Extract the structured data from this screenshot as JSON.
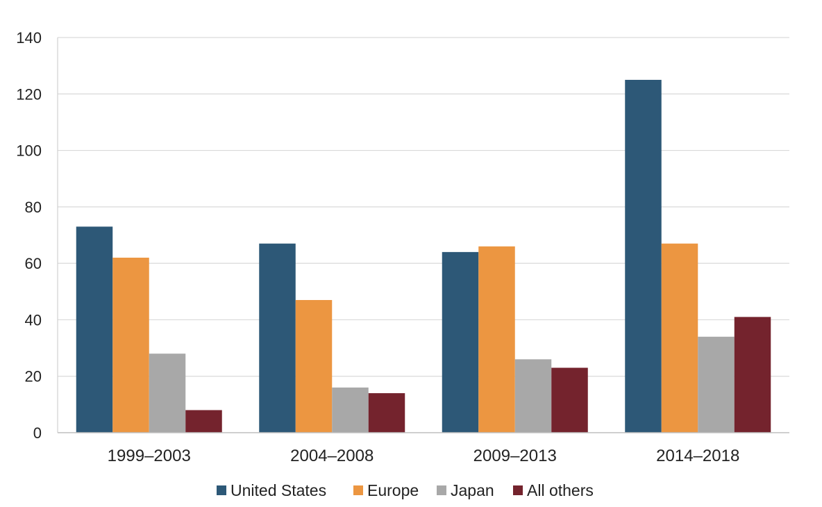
{
  "chart_data": {
    "type": "bar",
    "title": "",
    "xlabel": "",
    "ylabel": "",
    "categories": [
      "1999–2003",
      "2004–2008",
      "2009–2013",
      "2014–2018"
    ],
    "series": [
      {
        "name": "United States",
        "color": "#2d5877",
        "values": [
          73,
          67,
          64,
          125
        ]
      },
      {
        "name": "Europe",
        "color": "#ec9641",
        "values": [
          62,
          47,
          66,
          67
        ]
      },
      {
        "name": "Japan",
        "color": "#a8a8a8",
        "values": [
          28,
          16,
          26,
          34
        ]
      },
      {
        "name": "All others",
        "color": "#74232d",
        "values": [
          8,
          14,
          23,
          41
        ]
      }
    ],
    "ylim": [
      0,
      140
    ],
    "yticks": [
      0,
      20,
      40,
      60,
      80,
      100,
      120,
      140
    ],
    "grid": true,
    "legend": "bottom"
  }
}
